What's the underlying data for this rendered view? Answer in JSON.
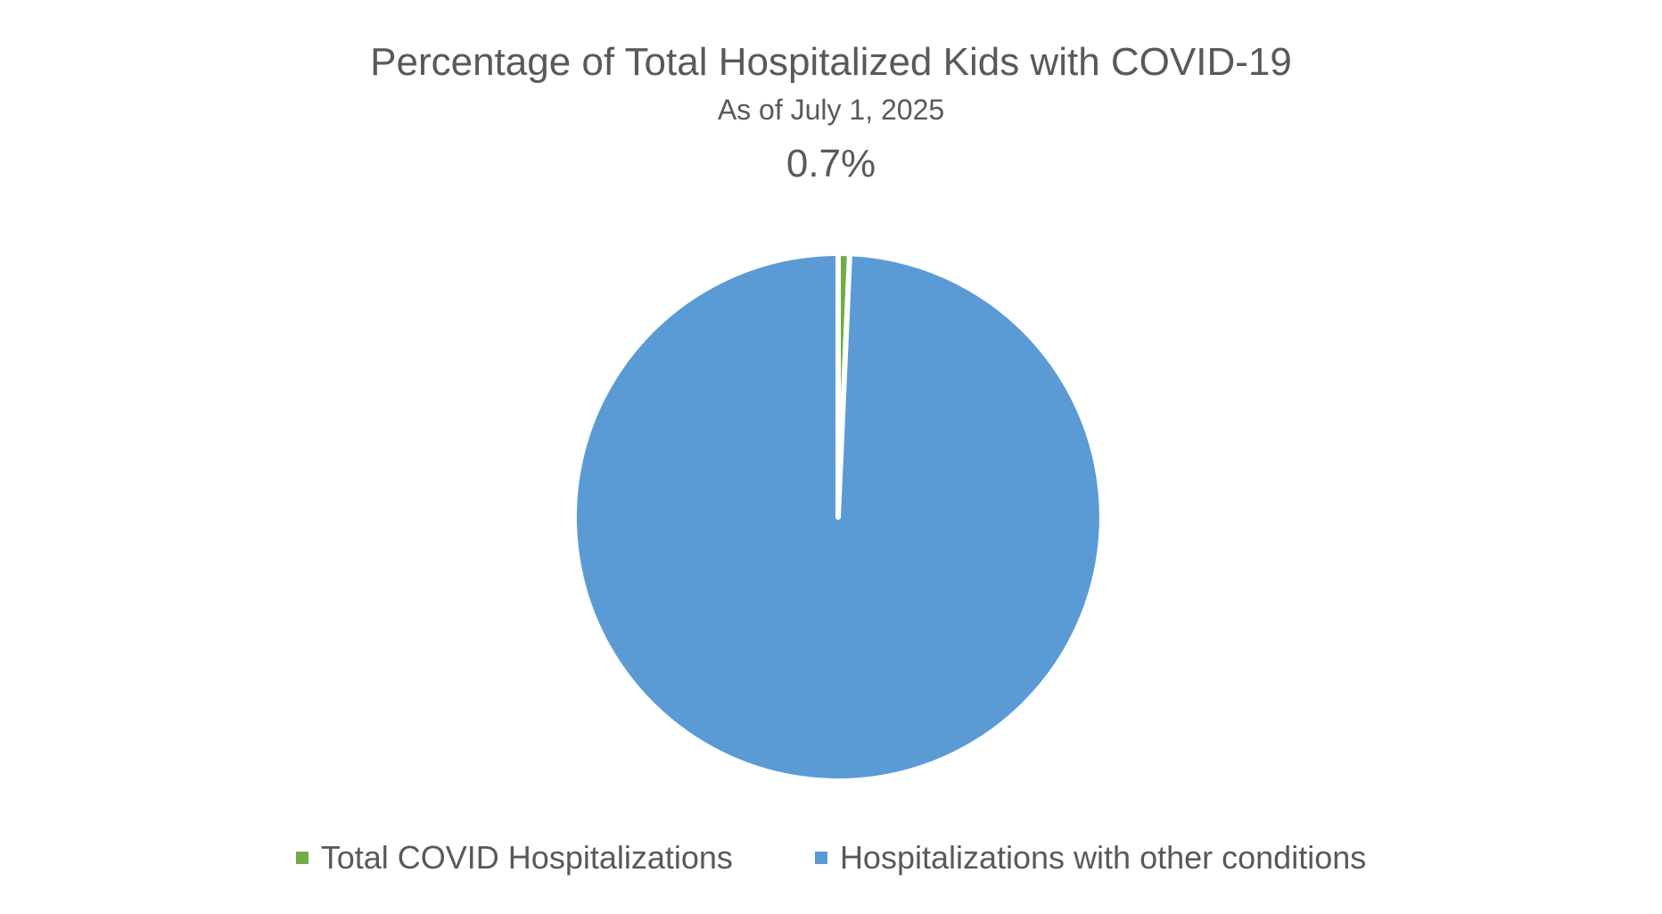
{
  "chart_data": {
    "type": "pie",
    "title": "Percentage of Total Hospitalized Kids with COVID-19",
    "subtitle": "As of July 1, 2025",
    "headline_value": "0.7%",
    "categories": [
      "Total COVID Hospitalizations",
      "Hospitalizations with other conditions"
    ],
    "values": [
      0.7,
      99.3
    ],
    "colors": [
      "#70ad47",
      "#5b9bd5"
    ],
    "start_angle_deg": 0,
    "direction": "clockwise",
    "legend_position": "bottom"
  }
}
